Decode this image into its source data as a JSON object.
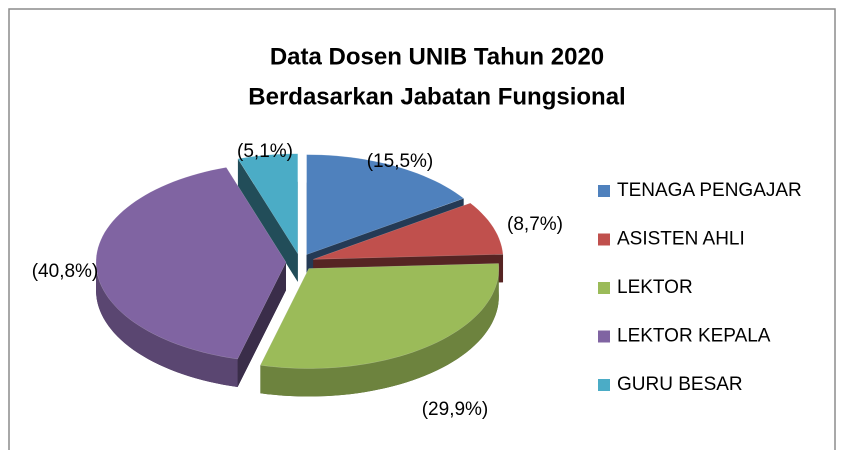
{
  "chart_data": {
    "type": "pie3d",
    "title": "Data Dosen UNIB Tahun 2020",
    "subtitle": "Berdasarkan Jabatan Fungsional",
    "categories": [
      "TENAGA PENGAJAR",
      "ASISTEN AHLI",
      "LEKTOR",
      "LEKTOR KEPALA",
      "GURU BESAR"
    ],
    "values": [
      15.5,
      8.7,
      29.9,
      40.8,
      5.1
    ],
    "value_labels": [
      "(15,5%)",
      "(8,7%)",
      "(29,9%)",
      "(40,8%)",
      "(5,1%)"
    ],
    "colors": [
      "#4f81bd",
      "#c0504d",
      "#9bbb59",
      "#8064a2",
      "#4bacc6"
    ],
    "legend": "right"
  }
}
